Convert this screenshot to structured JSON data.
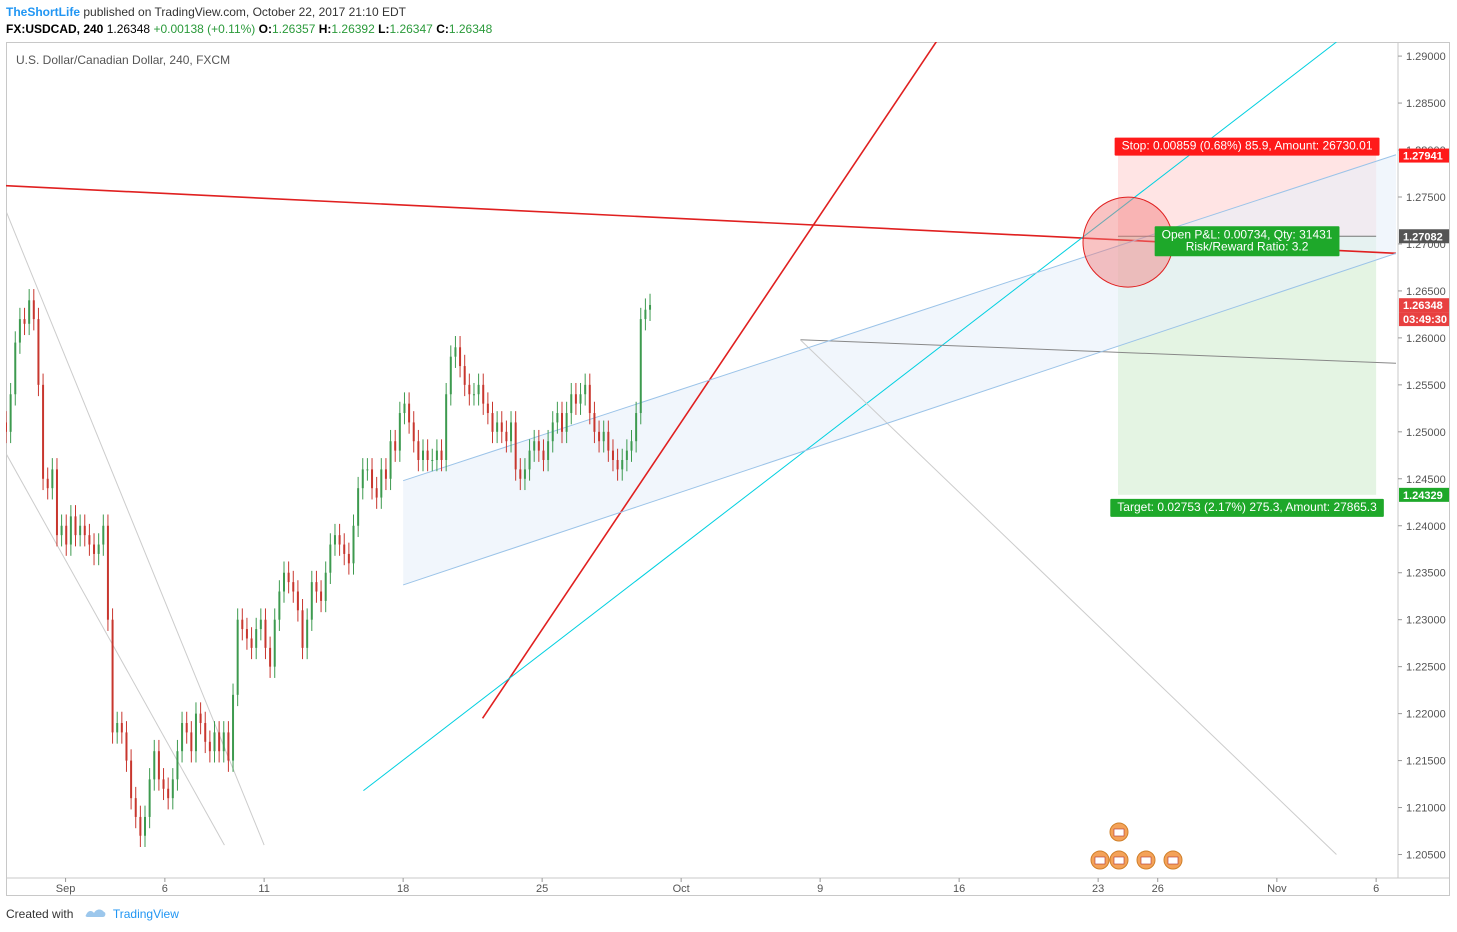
{
  "header": {
    "author": "TheShortLife",
    "published": "published on TradingView.com, October 22, 2017 21:10 EDT"
  },
  "symbol_bar": {
    "symbol": "FX:USDCAD, 240",
    "last": "1.26348",
    "change": "+0.00138 (+0.11%)",
    "o_label": "O:",
    "o_value": "1.26357",
    "h_label": "H:",
    "h_value": "1.26392",
    "l_label": "L:",
    "l_value": "1.26347",
    "c_label": "C:",
    "c_value": "1.26348"
  },
  "chart_title": "U.S. Dollar/Canadian Dollar, 240, FXCM",
  "footer": {
    "created_with": "Created with",
    "brand": "TradingView"
  },
  "colors": {
    "up": "#3d9a4f",
    "down": "#c8362e",
    "red_line": "#e02020",
    "cyan_line": "#00d0e0",
    "channel": "#9bc3e8",
    "grey_line": "#b8b8b8"
  },
  "chart_data": {
    "type": "candlestick",
    "ylim": [
      1.2025,
      1.2915
    ],
    "xlim": [
      "2017-08-29",
      "2017-11-07"
    ],
    "y_ticks": [
      "1.29000",
      "1.28500",
      "1.28000",
      "1.27500",
      "1.27000",
      "1.26500",
      "1.26000",
      "1.25500",
      "1.25000",
      "1.24500",
      "1.24000",
      "1.23500",
      "1.23000",
      "1.22500",
      "1.22000",
      "1.21500",
      "1.21000",
      "1.20500"
    ],
    "x_ticks": [
      {
        "label": "Sep",
        "date": "2017-09-01"
      },
      {
        "label": "6",
        "date": "2017-09-06"
      },
      {
        "label": "11",
        "date": "2017-09-11"
      },
      {
        "label": "18",
        "date": "2017-09-18"
      },
      {
        "label": "25",
        "date": "2017-09-25"
      },
      {
        "label": "Oct",
        "date": "2017-10-02"
      },
      {
        "label": "9",
        "date": "2017-10-09"
      },
      {
        "label": "16",
        "date": "2017-10-16"
      },
      {
        "label": "23",
        "date": "2017-10-23"
      },
      {
        "label": "26",
        "date": "2017-10-26"
      },
      {
        "label": "Nov",
        "date": "2017-11-01"
      },
      {
        "label": "6",
        "date": "2017-11-06"
      }
    ],
    "price_labels": [
      {
        "text": "1.27941",
        "value": 1.27941,
        "color": "#ff1a1a"
      },
      {
        "text": "1.27082",
        "value": 1.27082,
        "color": "#555555"
      },
      {
        "text": "1.26348",
        "value": 1.26348,
        "color": "#e84040"
      },
      {
        "text": "03:49:30",
        "value": 1.262,
        "color": "#e84040"
      },
      {
        "text": "1.24329",
        "value": 1.24329,
        "color": "#1ea82a"
      }
    ],
    "candles": {
      "start": "2017-08-29",
      "interval_hours": 4,
      "closes": [
        1.25,
        1.254,
        1.2595,
        1.262,
        1.2615,
        1.264,
        1.262,
        1.255,
        1.245,
        1.244,
        1.246,
        1.239,
        1.24,
        1.238,
        1.241,
        1.239,
        1.24,
        1.239,
        1.238,
        1.237,
        1.238,
        1.24,
        1.23,
        1.218,
        1.219,
        1.218,
        1.215,
        1.211,
        1.209,
        1.207,
        1.209,
        1.213,
        1.216,
        1.213,
        1.212,
        1.211,
        1.213,
        1.216,
        1.219,
        1.218,
        1.216,
        1.22,
        1.219,
        1.217,
        1.216,
        1.218,
        1.216,
        1.218,
        1.215,
        1.222,
        1.23,
        1.229,
        1.228,
        1.227,
        1.229,
        1.23,
        1.227,
        1.225,
        1.23,
        1.233,
        1.235,
        1.234,
        1.233,
        1.231,
        1.227,
        1.23,
        1.234,
        1.233,
        1.232,
        1.235,
        1.238,
        1.239,
        1.238,
        1.237,
        1.236,
        1.24,
        1.244,
        1.246,
        1.246,
        1.244,
        1.243,
        1.246,
        1.245,
        1.249,
        1.248,
        1.252,
        1.253,
        1.251,
        1.249,
        1.247,
        1.248,
        1.247,
        1.247,
        1.248,
        1.247,
        1.254,
        1.258,
        1.259,
        1.257,
        1.255,
        1.254,
        1.254,
        1.255,
        1.253,
        1.252,
        1.25,
        1.251,
        1.25,
        1.249,
        1.251,
        1.246,
        1.245,
        1.246,
        1.248,
        1.249,
        1.248,
        1.247,
        1.249,
        1.251,
        1.252,
        1.25,
        1.252,
        1.254,
        1.253,
        1.254,
        1.255,
        1.252,
        1.25,
        1.249,
        1.25,
        1.248,
        1.247,
        1.246,
        1.247,
        1.248,
        1.249,
        1.252,
        1.262,
        1.263,
        1.2635
      ],
      "opens": [
        1.251,
        1.25,
        1.254,
        1.2595,
        1.262,
        1.2615,
        1.264,
        1.262,
        1.255,
        1.245,
        1.244,
        1.246,
        1.239,
        1.24,
        1.238,
        1.241,
        1.239,
        1.24,
        1.239,
        1.238,
        1.237,
        1.238,
        1.24,
        1.23,
        1.218,
        1.219,
        1.218,
        1.215,
        1.211,
        1.209,
        1.207,
        1.209,
        1.213,
        1.216,
        1.213,
        1.212,
        1.211,
        1.213,
        1.216,
        1.219,
        1.218,
        1.216,
        1.22,
        1.219,
        1.217,
        1.216,
        1.218,
        1.216,
        1.218,
        1.215,
        1.222,
        1.23,
        1.229,
        1.228,
        1.227,
        1.229,
        1.23,
        1.227,
        1.225,
        1.23,
        1.233,
        1.235,
        1.234,
        1.233,
        1.231,
        1.227,
        1.23,
        1.234,
        1.233,
        1.232,
        1.235,
        1.238,
        1.239,
        1.238,
        1.237,
        1.236,
        1.24,
        1.244,
        1.246,
        1.246,
        1.244,
        1.243,
        1.246,
        1.245,
        1.249,
        1.248,
        1.252,
        1.253,
        1.251,
        1.249,
        1.247,
        1.248,
        1.247,
        1.247,
        1.248,
        1.247,
        1.254,
        1.258,
        1.259,
        1.257,
        1.255,
        1.254,
        1.254,
        1.255,
        1.253,
        1.252,
        1.25,
        1.251,
        1.25,
        1.249,
        1.251,
        1.246,
        1.245,
        1.246,
        1.248,
        1.249,
        1.248,
        1.247,
        1.249,
        1.251,
        1.252,
        1.25,
        1.252,
        1.254,
        1.253,
        1.254,
        1.255,
        1.252,
        1.25,
        1.249,
        1.25,
        1.248,
        1.247,
        1.246,
        1.247,
        1.248,
        1.249,
        1.252,
        1.262,
        1.263
      ]
    },
    "trendlines": [
      {
        "name": "red-resistance",
        "color": "#e02020",
        "p1": [
          "2017-08-29",
          1.2762
        ],
        "p2": [
          "2017-11-07",
          1.269
        ]
      },
      {
        "name": "red-support",
        "color": "#e02020",
        "p1": [
          "2017-09-22",
          1.2195
        ],
        "p2": [
          "2017-10-15",
          1.292
        ]
      },
      {
        "name": "cyan-support",
        "color": "#00d0e0",
        "p1": [
          "2017-09-16",
          1.2118
        ],
        "p2": [
          "2017-11-04",
          1.2915
        ]
      },
      {
        "name": "grey-horizontal",
        "color": "#888888",
        "p1": [
          "2017-10-08",
          1.2598
        ],
        "p2": [
          "2017-11-07",
          1.2573
        ]
      },
      {
        "name": "grey-desc-1",
        "color": "#cccccc",
        "p1": [
          "2017-08-29",
          1.2735
        ],
        "p2": [
          "2017-09-11",
          1.206
        ]
      },
      {
        "name": "grey-desc-2",
        "color": "#cccccc",
        "p1": [
          "2017-08-29",
          1.2477
        ],
        "p2": [
          "2017-09-09",
          1.206
        ]
      },
      {
        "name": "grey-desc-3",
        "color": "#cccccc",
        "p1": [
          "2017-10-08",
          1.2598
        ],
        "p2": [
          "2017-11-04",
          1.205
        ]
      },
      {
        "name": "channel-top",
        "color": "#9bc3e8",
        "p1": [
          "2017-09-18",
          1.2448
        ],
        "p2": [
          "2017-11-07",
          1.2795
        ]
      },
      {
        "name": "channel-bottom",
        "color": "#9bc3e8",
        "p1": [
          "2017-09-18",
          1.2337
        ],
        "p2": [
          "2017-11-07",
          1.269
        ]
      }
    ],
    "position": {
      "entry": 1.27082,
      "stop": 1.27941,
      "target": 1.24329,
      "start": "2017-10-24",
      "end": "2017-11-06",
      "stop_label": "Stop: 0.00859 (0.68%) 85.9, Amount: 26730.01",
      "pnl_label": "Open P&L: 0.00734, Qty: 31431",
      "rr_label": "Risk/Reward Ratio: 3.2",
      "target_label": "Target: 0.02753 (2.17%) 275.3, Amount: 27865.3"
    },
    "marker_circle": {
      "date": "2017-10-24",
      "value": 1.2702
    }
  }
}
